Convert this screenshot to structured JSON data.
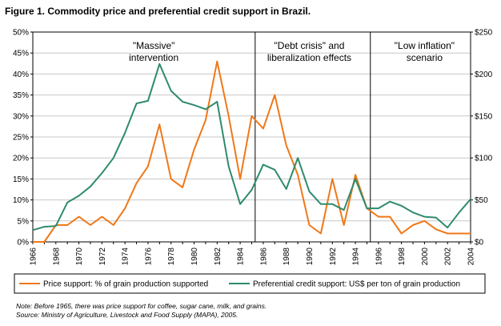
{
  "figure": {
    "title": "Figure 1. Commodity price and preferential credit support in Brazil."
  },
  "notes": [
    "Note: Before 1965, there was price support for coffee, sugar cane, milk, and grains.",
    "Source: Ministry of Agriculture, Livestock and Food Supply (MAPA), 2005."
  ],
  "chart_data": {
    "type": "line",
    "title": "Figure 1. Commodity price and preferential credit support in Brazil.",
    "x": [
      1966,
      1967,
      1968,
      1969,
      1970,
      1971,
      1972,
      1973,
      1974,
      1975,
      1976,
      1977,
      1978,
      1979,
      1980,
      1981,
      1982,
      1983,
      1984,
      1985,
      1986,
      1987,
      1988,
      1989,
      1990,
      1991,
      1992,
      1993,
      1994,
      1995,
      1996,
      1997,
      1998,
      1999,
      2000,
      2001,
      2002,
      2003,
      2004
    ],
    "xticks": [
      1966,
      1968,
      1970,
      1972,
      1974,
      1976,
      1978,
      1980,
      1982,
      1984,
      1986,
      1988,
      1990,
      1992,
      1994,
      1996,
      1998,
      2000,
      2002,
      2004
    ],
    "xlim": [
      1966,
      2004
    ],
    "y_left": {
      "ticks": [
        "0%",
        "5%",
        "10%",
        "15%",
        "20%",
        "25%",
        "30%",
        "35%",
        "40%",
        "45%",
        "50%"
      ],
      "lim": [
        0,
        50
      ]
    },
    "y_right": {
      "ticks": [
        "$0",
        "$50",
        "$100",
        "$150",
        "$200",
        "$250"
      ],
      "lim": [
        0,
        250
      ]
    },
    "grid": "horizontal",
    "legend_position": "bottom",
    "series": [
      {
        "name": "Price support: % of grain production supported",
        "axis": "left",
        "color": "#f07818",
        "values": [
          0,
          0,
          4,
          4,
          6,
          4,
          6,
          4,
          8,
          14,
          18,
          28,
          15,
          13,
          22,
          29,
          43,
          30,
          15,
          30,
          27,
          35,
          23,
          16,
          4,
          2,
          15,
          4,
          16,
          8,
          6,
          6,
          2,
          4,
          5,
          3,
          2,
          2,
          2
        ]
      },
      {
        "name": "Preferential credit support: US$ per ton of grain production",
        "axis": "right",
        "color": "#2e8b6e",
        "values": [
          14,
          18,
          19,
          47,
          55,
          66,
          82,
          100,
          130,
          165,
          168,
          212,
          180,
          167,
          163,
          158,
          167,
          90,
          45,
          62,
          92,
          86,
          63,
          100,
          60,
          45,
          45,
          38,
          75,
          40,
          40,
          48,
          43,
          35,
          30,
          29,
          17,
          35,
          51
        ]
      }
    ],
    "annotations": [
      {
        "lines": [
          "\"Massive\"",
          "intervention"
        ],
        "x": 1976.5
      },
      {
        "lines": [
          "\"Debt crisis\" and",
          "liberalization effects"
        ],
        "x": 1990
      },
      {
        "lines": [
          "\"Low inflation\"",
          "scenario"
        ],
        "x": 2000
      }
    ],
    "dividers": [
      1985.3,
      1995.3
    ]
  }
}
